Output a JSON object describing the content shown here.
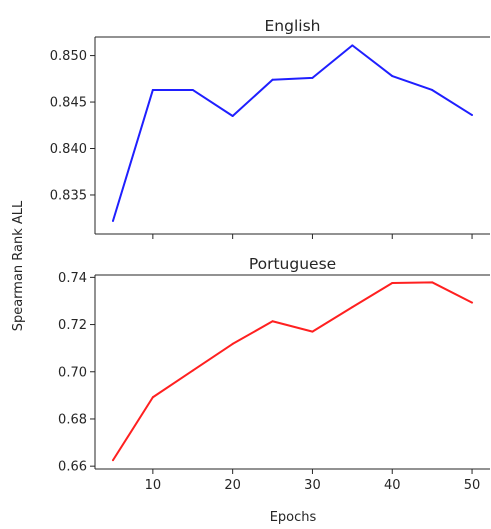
{
  "chart_data": [
    {
      "type": "line",
      "title": "English",
      "x": [
        5,
        10,
        15,
        20,
        25,
        30,
        35,
        40,
        45,
        50
      ],
      "series": [
        {
          "values": [
            0.8322,
            0.8463,
            0.8463,
            0.8435,
            0.8474,
            0.8476,
            0.8511,
            0.8478,
            0.8463,
            0.8436
          ],
          "color": "#1f1fff"
        }
      ],
      "xlim": [
        2.75,
        52.25
      ],
      "ylim": [
        0.8308,
        0.852
      ],
      "yticks": [
        0.835,
        0.84,
        0.845,
        0.85
      ],
      "ytick_labels": [
        "0.835",
        "0.840",
        "0.845",
        "0.850"
      ],
      "xticks": [
        10,
        20,
        30,
        40,
        50
      ],
      "xtick_labels": [],
      "grid": false
    },
    {
      "type": "line",
      "title": "Portuguese",
      "x": [
        5,
        10,
        15,
        20,
        25,
        30,
        35,
        40,
        45,
        50
      ],
      "series": [
        {
          "values": [
            0.6625,
            0.6892,
            0.7005,
            0.7118,
            0.7214,
            0.717,
            0.7274,
            0.7376,
            0.7379,
            0.7293
          ],
          "color": "#ff2020"
        }
      ],
      "xlim": [
        2.75,
        52.25
      ],
      "ylim": [
        0.6588,
        0.741
      ],
      "yticks": [
        0.66,
        0.68,
        0.7,
        0.72,
        0.74
      ],
      "ytick_labels": [
        "0.66",
        "0.68",
        "0.70",
        "0.72",
        "0.74"
      ],
      "xticks": [
        10,
        20,
        30,
        40,
        50
      ],
      "xtick_labels": [
        "10",
        "20",
        "30",
        "40",
        "50"
      ],
      "grid": false
    }
  ],
  "shared": {
    "xlabel": "Epochs",
    "ylabel": "Spearman Rank ALL"
  }
}
